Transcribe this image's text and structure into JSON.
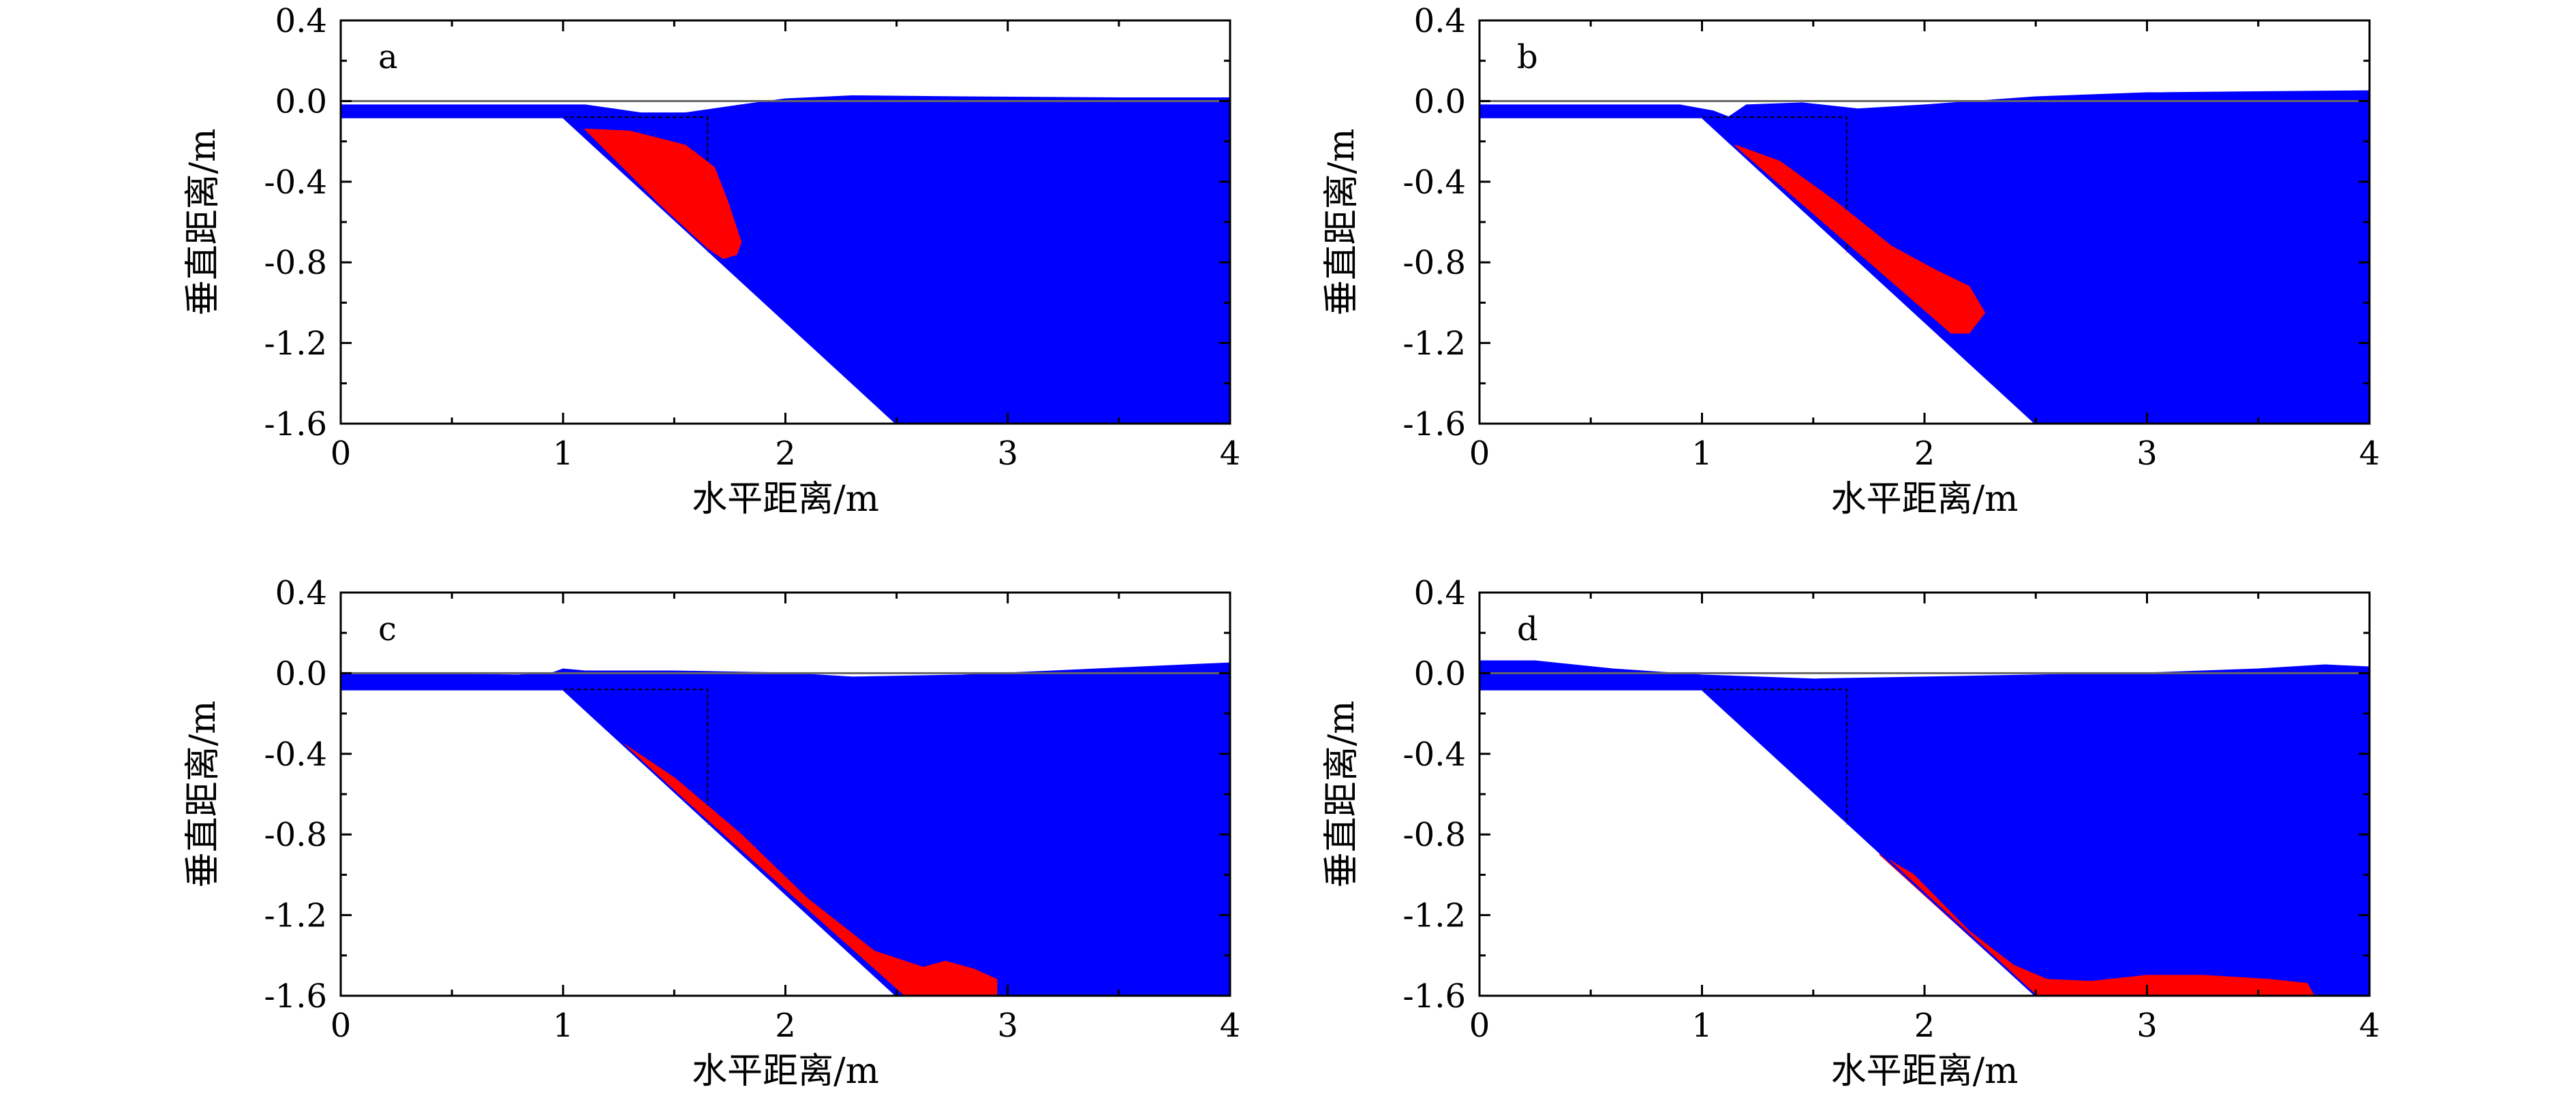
{
  "colors": {
    "water": "#0000ff",
    "slide": "#ff0000",
    "axis": "#000000",
    "reference": "#666666"
  },
  "chart_data": [
    {
      "type": "area",
      "panel_label": "a",
      "xlabel": "水平距离/m",
      "ylabel": "垂直距离/m",
      "xlim": [
        0,
        4
      ],
      "ylim": [
        -1.6,
        0.4
      ],
      "xticks": [
        "0",
        "1",
        "2",
        "3",
        "4"
      ],
      "yticks": [
        "0.4",
        "0.0",
        "-0.4",
        "-0.8",
        "-1.2",
        "-1.6"
      ],
      "grid": false,
      "slope_profile": [
        [
          0,
          -0.08
        ],
        [
          1.0,
          -0.08
        ],
        [
          2.5,
          -1.6
        ]
      ],
      "initial_block_outline": [
        [
          1.0,
          -0.08
        ],
        [
          1.65,
          -0.08
        ],
        [
          1.65,
          -0.75
        ]
      ],
      "water_surface": [
        [
          0,
          -0.02
        ],
        [
          0.8,
          -0.02
        ],
        [
          1.1,
          -0.02
        ],
        [
          1.35,
          -0.06
        ],
        [
          1.55,
          -0.06
        ],
        [
          1.8,
          -0.02
        ],
        [
          2.0,
          0.01
        ],
        [
          2.3,
          0.025
        ],
        [
          2.8,
          0.02
        ],
        [
          3.5,
          0.015
        ],
        [
          4.0,
          0.015
        ]
      ],
      "slide_outline": [
        [
          1.1,
          -0.14
        ],
        [
          1.3,
          -0.15
        ],
        [
          1.55,
          -0.22
        ],
        [
          1.68,
          -0.33
        ],
        [
          1.74,
          -0.5
        ],
        [
          1.8,
          -0.7
        ],
        [
          1.78,
          -0.76
        ],
        [
          1.72,
          -0.78
        ],
        [
          1.6,
          -0.69
        ]
      ]
    },
    {
      "type": "area",
      "panel_label": "b",
      "xlabel": "水平距离/m",
      "ylabel": "垂直距离/m",
      "xlim": [
        0,
        4
      ],
      "ylim": [
        -1.6,
        0.4
      ],
      "xticks": [
        "0",
        "1",
        "2",
        "3",
        "4"
      ],
      "yticks": [
        "0.4",
        "0.0",
        "-0.4",
        "-0.8",
        "-1.2",
        "-1.6"
      ],
      "grid": false,
      "slope_profile": [
        [
          0,
          -0.08
        ],
        [
          1.0,
          -0.08
        ],
        [
          2.5,
          -1.6
        ]
      ],
      "initial_block_outline": [
        [
          1.0,
          -0.08
        ],
        [
          1.65,
          -0.08
        ],
        [
          1.65,
          -0.75
        ]
      ],
      "water_surface": [
        [
          0,
          -0.02
        ],
        [
          0.9,
          -0.02
        ],
        [
          1.05,
          -0.05
        ],
        [
          1.12,
          -0.08
        ],
        [
          1.2,
          -0.02
        ],
        [
          1.45,
          -0.01
        ],
        [
          1.7,
          -0.04
        ],
        [
          2.0,
          -0.02
        ],
        [
          2.5,
          0.02
        ],
        [
          3.0,
          0.04
        ],
        [
          4.0,
          0.05
        ]
      ],
      "slide_outline": [
        [
          1.15,
          -0.22
        ],
        [
          1.35,
          -0.3
        ],
        [
          1.6,
          -0.5
        ],
        [
          1.85,
          -0.72
        ],
        [
          2.05,
          -0.84
        ],
        [
          2.2,
          -0.92
        ],
        [
          2.27,
          -1.05
        ],
        [
          2.2,
          -1.15
        ],
        [
          2.12,
          -1.15
        ]
      ]
    },
    {
      "type": "area",
      "panel_label": "c",
      "xlabel": "水平距离/m",
      "ylabel": "垂直距离/m",
      "xlim": [
        0,
        4
      ],
      "ylim": [
        -1.6,
        0.4
      ],
      "xticks": [
        "0",
        "1",
        "2",
        "3",
        "4"
      ],
      "yticks": [
        "0.4",
        "0.0",
        "-0.4",
        "-0.8",
        "-1.2",
        "-1.6"
      ],
      "grid": false,
      "slope_profile": [
        [
          0,
          -0.08
        ],
        [
          1.0,
          -0.08
        ],
        [
          2.5,
          -1.6
        ]
      ],
      "initial_block_outline": [
        [
          1.0,
          -0.08
        ],
        [
          1.65,
          -0.08
        ],
        [
          1.65,
          -0.75
        ]
      ],
      "water_surface": [
        [
          0,
          0.0
        ],
        [
          0.8,
          -0.01
        ],
        [
          0.95,
          0.0
        ],
        [
          1.0,
          0.02
        ],
        [
          1.1,
          0.01
        ],
        [
          1.5,
          0.01
        ],
        [
          2.0,
          0.0
        ],
        [
          2.3,
          -0.02
        ],
        [
          2.8,
          -0.01
        ],
        [
          3.2,
          0.01
        ],
        [
          3.6,
          0.03
        ],
        [
          4.0,
          0.05
        ]
      ],
      "slide_outline": [
        [
          1.27,
          -0.35
        ],
        [
          1.5,
          -0.52
        ],
        [
          1.8,
          -0.8
        ],
        [
          2.1,
          -1.12
        ],
        [
          2.4,
          -1.38
        ],
        [
          2.62,
          -1.46
        ],
        [
          2.72,
          -1.43
        ],
        [
          2.85,
          -1.47
        ],
        [
          2.95,
          -1.52
        ],
        [
          2.95,
          -1.6
        ],
        [
          2.54,
          -1.6
        ]
      ]
    },
    {
      "type": "area",
      "panel_label": "d",
      "xlabel": "水平距离/m",
      "ylabel": "垂直距离/m",
      "xlim": [
        0,
        4
      ],
      "ylim": [
        -1.6,
        0.4
      ],
      "xticks": [
        "0",
        "1",
        "2",
        "3",
        "4"
      ],
      "yticks": [
        "0.4",
        "0.0",
        "-0.4",
        "-0.8",
        "-1.2",
        "-1.6"
      ],
      "grid": false,
      "slope_profile": [
        [
          0,
          -0.08
        ],
        [
          1.0,
          -0.08
        ],
        [
          2.5,
          -1.6
        ]
      ],
      "initial_block_outline": [
        [
          1.0,
          -0.08
        ],
        [
          1.65,
          -0.08
        ],
        [
          1.65,
          -0.75
        ]
      ],
      "water_surface": [
        [
          0,
          0.06
        ],
        [
          0.25,
          0.06
        ],
        [
          0.6,
          0.02
        ],
        [
          1.0,
          -0.01
        ],
        [
          1.5,
          -0.03
        ],
        [
          2.0,
          -0.02
        ],
        [
          2.5,
          -0.01
        ],
        [
          3.0,
          0.0
        ],
        [
          3.5,
          0.02
        ],
        [
          3.8,
          0.04
        ],
        [
          4.0,
          0.03
        ]
      ],
      "slide_outline": [
        [
          1.8,
          -0.9
        ],
        [
          1.95,
          -1.0
        ],
        [
          2.2,
          -1.28
        ],
        [
          2.4,
          -1.45
        ],
        [
          2.55,
          -1.52
        ],
        [
          2.75,
          -1.53
        ],
        [
          3.0,
          -1.5
        ],
        [
          3.25,
          -1.5
        ],
        [
          3.55,
          -1.52
        ],
        [
          3.72,
          -1.54
        ],
        [
          3.75,
          -1.6
        ],
        [
          2.5,
          -1.6
        ]
      ]
    }
  ]
}
